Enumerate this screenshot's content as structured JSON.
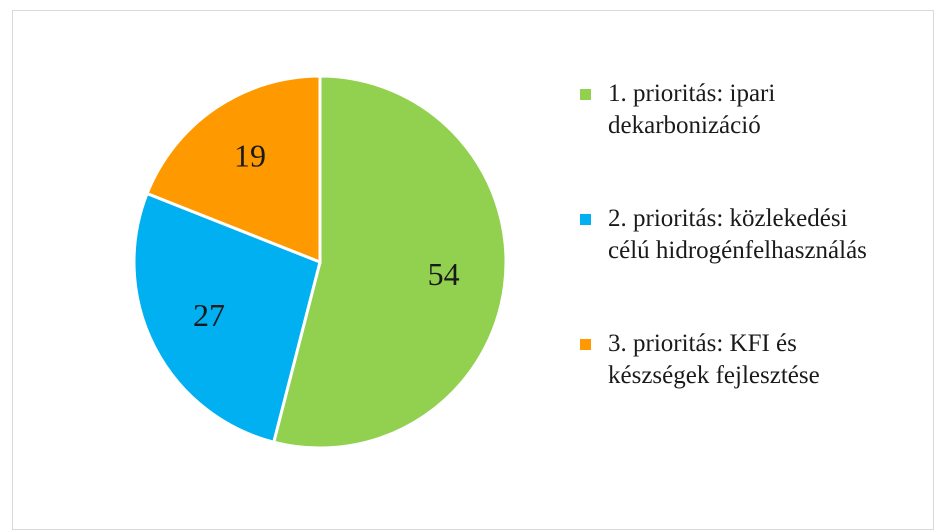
{
  "chart_data": {
    "type": "pie",
    "title": "",
    "slices": [
      {
        "label": "1. prioritás: ipari\ndekarbonizáció",
        "value": 54,
        "display": "54",
        "color": "#92d050"
      },
      {
        "label": "2. prioritás: közlekedési\ncélú hidrogénfelhasználás",
        "value": 27,
        "display": "27",
        "color": "#00b0f0"
      },
      {
        "label": "3. prioritás: KFI és\nkészségek fejlesztése",
        "value": 19,
        "display": "19",
        "color": "#ff9900"
      }
    ],
    "legend_position": "right"
  }
}
